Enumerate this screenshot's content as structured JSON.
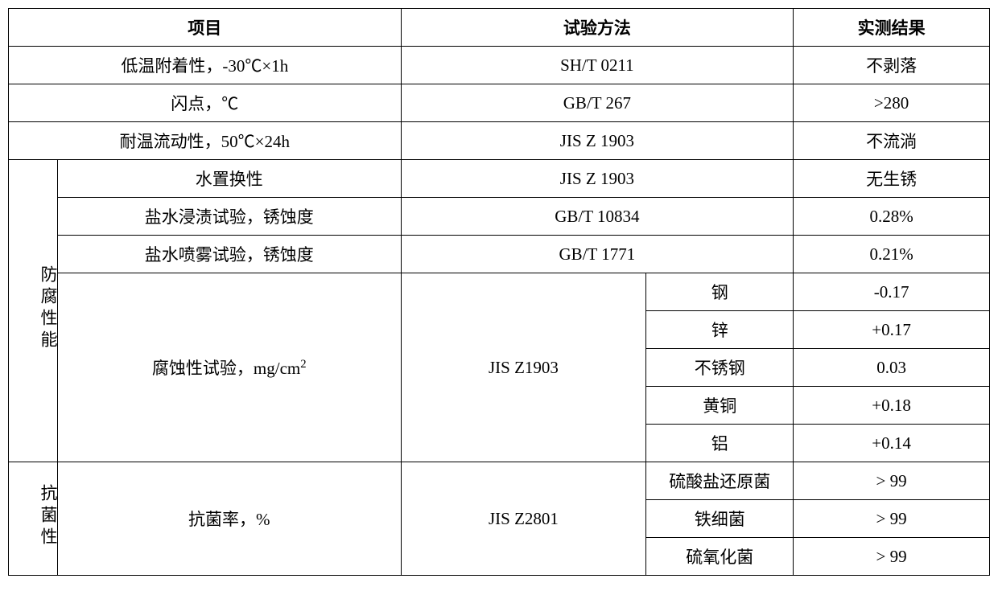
{
  "table": {
    "border_color": "#000000",
    "background_color": "#ffffff",
    "text_color": "#000000",
    "font_size_pt": 16,
    "header_font_weight": "bold",
    "col_widths_pct": [
      5,
      35,
      25,
      15,
      20
    ],
    "headers": {
      "item": "项目",
      "method": "试验方法",
      "result": "实测结果"
    },
    "rows_simple": [
      {
        "item": "低温附着性，-30℃×1h",
        "method": "SH/T 0211",
        "result": "不剥落"
      },
      {
        "item": "闪点，℃",
        "method": "GB/T 267",
        "result": ">280"
      },
      {
        "item": "耐温流动性，50℃×24h",
        "method": "JIS Z 1903",
        "result": "不流淌"
      }
    ],
    "group_anticorrosion": {
      "label": "防腐性能",
      "rows_top": [
        {
          "item": "水置换性",
          "method": "JIS Z 1903",
          "result": "无生锈"
        },
        {
          "item": "盐水浸渍试验，锈蚀度",
          "method": "GB/T 10834",
          "result": "0.28%"
        },
        {
          "item": "盐水喷雾试验，锈蚀度",
          "method": "GB/T 1771",
          "result": "0.21%"
        }
      ],
      "corrosion_test": {
        "item_html": "腐蚀性试验，mg/cm<sup>2</sup>",
        "method": "JIS Z1903",
        "materials": [
          {
            "name": "钢",
            "value": "-0.17"
          },
          {
            "name": "锌",
            "value": "+0.17"
          },
          {
            "name": "不锈钢",
            "value": "0.03"
          },
          {
            "name": "黄铜",
            "value": "+0.18"
          },
          {
            "name": "铝",
            "value": "+0.14"
          }
        ]
      }
    },
    "group_antibacterial": {
      "label": "抗菌性",
      "item": "抗菌率，%",
      "method": "JIS Z2801",
      "bacteria": [
        {
          "name": "硫酸盐还原菌",
          "value": "> 99"
        },
        {
          "name": "铁细菌",
          "value": "> 99"
        },
        {
          "name": "硫氧化菌",
          "value": "> 99"
        }
      ]
    }
  }
}
